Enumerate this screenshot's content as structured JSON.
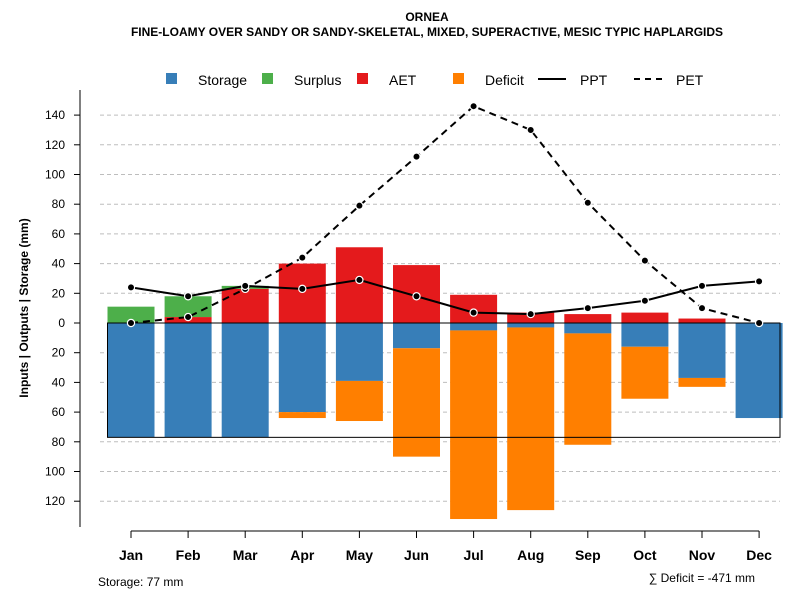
{
  "chart_data": {
    "type": "bar",
    "title": "ORNEA",
    "subtitle": "FINE-LOAMY OVER SANDY OR SANDY-SKELETAL, MIXED, SUPERACTIVE, MESIC TYPIC HAPLARGIDS",
    "ylabel": "Inputs | Outputs | Storage    (mm)",
    "ylim": [
      -137,
      157
    ],
    "yticks": [
      -120,
      -100,
      -80,
      -60,
      -40,
      -20,
      0,
      20,
      40,
      60,
      80,
      100,
      120,
      140
    ],
    "ytick_labels": [
      "120",
      "100",
      "80",
      "60",
      "40",
      "20",
      "0",
      "20",
      "40",
      "60",
      "80",
      "100",
      "120",
      "140"
    ],
    "categories": [
      "Jan",
      "Feb",
      "Mar",
      "Apr",
      "May",
      "Jun",
      "Jul",
      "Aug",
      "Sep",
      "Oct",
      "Nov",
      "Dec"
    ],
    "storage_capacity": 77,
    "colors": {
      "storage": "#377eb8",
      "surplus": "#4daf4a",
      "aet": "#e41a1c",
      "deficit": "#ff7f00",
      "ppt": "#000000",
      "pet": "#000000"
    },
    "legend": [
      "Storage",
      "Surplus",
      "AET",
      "Deficit",
      "PPT",
      "PET"
    ],
    "series": {
      "storage": [
        77,
        77,
        77,
        60,
        39,
        17,
        5,
        3,
        7,
        16,
        37,
        64
      ],
      "surplus": [
        11,
        14,
        2,
        0,
        0,
        0,
        0,
        0,
        0,
        0,
        0,
        0
      ],
      "aet": [
        0,
        4,
        23,
        40,
        51,
        39,
        19,
        7,
        6,
        7,
        3,
        0
      ],
      "deficit": [
        0,
        0,
        0,
        4,
        27,
        73,
        127,
        123,
        75,
        35,
        6,
        0
      ],
      "ppt": [
        24,
        18,
        25,
        23,
        29,
        18,
        7,
        6,
        10,
        15,
        25,
        28
      ],
      "pet": [
        0,
        4,
        23,
        44,
        79,
        112,
        146,
        130,
        81,
        42,
        10,
        0
      ]
    },
    "footer_left": "Storage: 77 mm",
    "footer_right": "∑ Deficit = -471 mm"
  }
}
